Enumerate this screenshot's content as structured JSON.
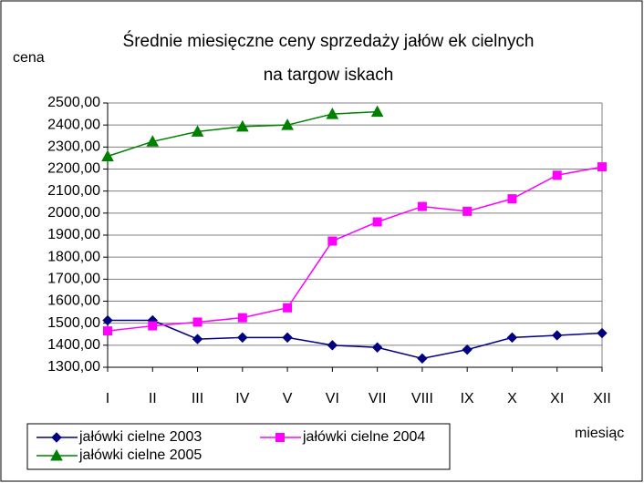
{
  "chart_data": {
    "type": "line",
    "title_lines": [
      "Średnie miesięczne ceny sprzedaży jałów ek cielnych",
      "na targow iskach"
    ],
    "y_label": "cena",
    "x_label": "miesiąc",
    "categories": [
      "I",
      "II",
      "III",
      "IV",
      "V",
      "VI",
      "VII",
      "VIII",
      "IX",
      "X",
      "XI",
      "XII"
    ],
    "series": [
      {
        "name": "jałówki cielne 2003",
        "color": "#000080",
        "marker": "diamond",
        "values": [
          1513,
          1513,
          1428,
          1435,
          1435,
          1400,
          1390,
          1340,
          1380,
          1435,
          1445,
          1455
        ]
      },
      {
        "name": "jałówki cielne 2004",
        "color": "#ff00ff",
        "marker": "square",
        "values": [
          1465,
          1488,
          1505,
          1525,
          1570,
          1873,
          1960,
          2030,
          2008,
          2065,
          2172,
          2210
        ]
      },
      {
        "name": "jałówki cielne 2005",
        "color": "#008000",
        "marker": "triangle",
        "values": [
          2258,
          2325,
          2370,
          2393,
          2400,
          2450,
          2460,
          null,
          null,
          null,
          null,
          null
        ]
      }
    ],
    "ylim": [
      1300,
      2500
    ],
    "yticks": [
      {
        "value": 1300,
        "label": "1300,00"
      },
      {
        "value": 1400,
        "label": "1400,00"
      },
      {
        "value": 1500,
        "label": "1500,00"
      },
      {
        "value": 1600,
        "label": "1600,00"
      },
      {
        "value": 1700,
        "label": "1700,00"
      },
      {
        "value": 1800,
        "label": "1800,00"
      },
      {
        "value": 1900,
        "label": "1900,00"
      },
      {
        "value": 2000,
        "label": "2000,00"
      },
      {
        "value": 2100,
        "label": "2100,00"
      },
      {
        "value": 2200,
        "label": "2200,00"
      },
      {
        "value": 2300,
        "label": "2300,00"
      },
      {
        "value": 2400,
        "label": "2400,00"
      },
      {
        "value": 2500,
        "label": "2500,00"
      }
    ],
    "grid": true,
    "legend": "bottom"
  }
}
